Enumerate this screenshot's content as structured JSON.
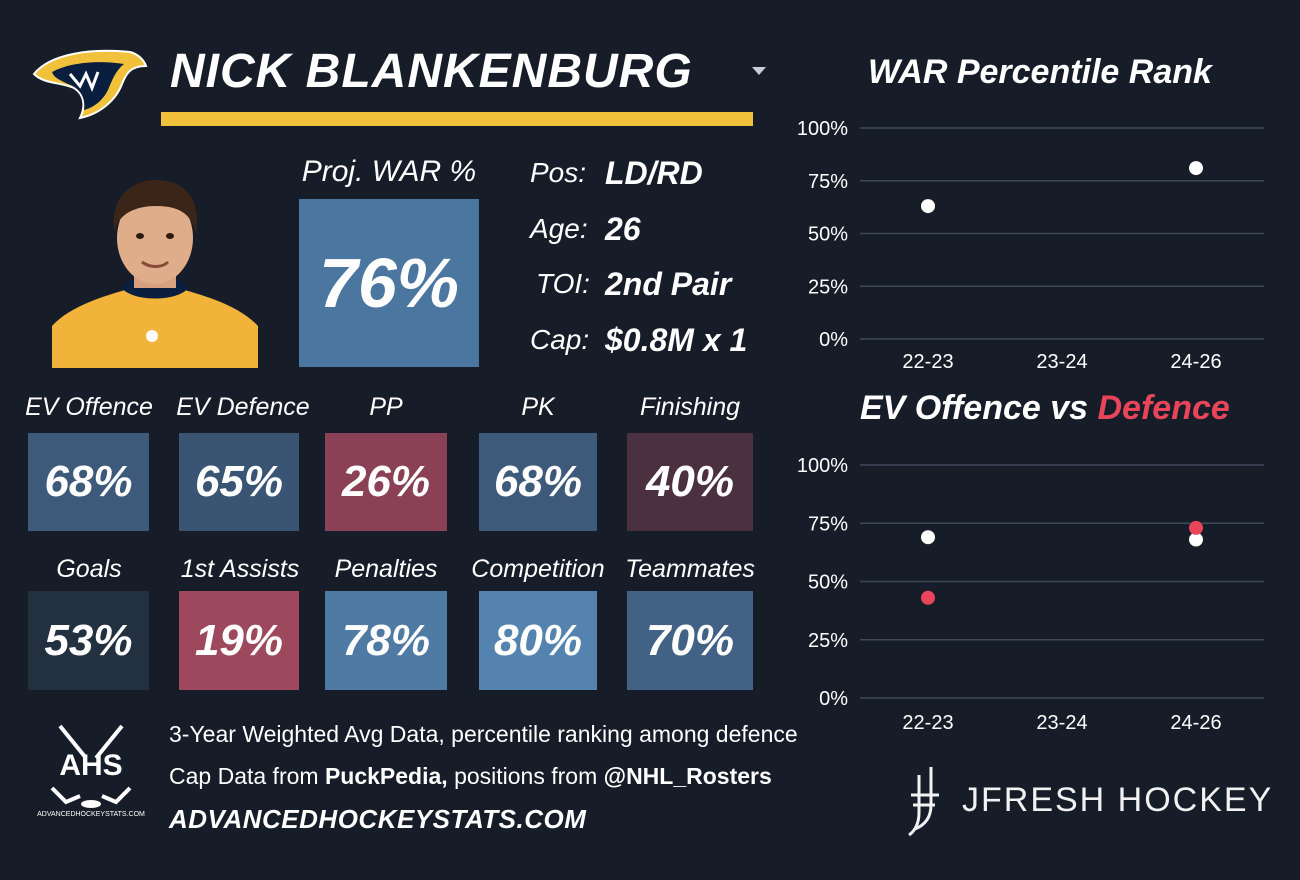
{
  "player": {
    "name": "NICK BLANKENBURG",
    "team_logo_icon": "nashville-predators-logo-icon",
    "headshot_icon": "player-headshot-icon"
  },
  "proj_war": {
    "label": "Proj. WAR %",
    "value": "76%"
  },
  "bio": [
    {
      "label": "Pos:",
      "value": "LD/RD"
    },
    {
      "label": "Age:",
      "value": "26"
    },
    {
      "label": "TOI:",
      "value": "2nd Pair"
    },
    {
      "label": "Cap:",
      "value": "$0.8M x 1"
    }
  ],
  "stats_row1": [
    {
      "label": "EV Offence",
      "value": "68%",
      "color": "#3e5a7a"
    },
    {
      "label": "EV Defence",
      "value": "65%",
      "color": "#3a5573"
    },
    {
      "label": "PP",
      "value": "26%",
      "color": "#8a4155"
    },
    {
      "label": "PK",
      "value": "68%",
      "color": "#3e5a7a"
    },
    {
      "label": "Finishing",
      "value": "40%",
      "color": "#4b3040"
    }
  ],
  "stats_row2": [
    {
      "label": "Goals",
      "value": "53%",
      "color": "#22303f"
    },
    {
      "label": "1st Assists",
      "value": "19%",
      "color": "#9e485e"
    },
    {
      "label": "Penalties",
      "value": "78%",
      "color": "#4f7aa3"
    },
    {
      "label": "Competition",
      "value": "80%",
      "color": "#5383ae"
    },
    {
      "label": "Teammates",
      "value": "70%",
      "color": "#426285"
    }
  ],
  "footer": {
    "line1": "3-Year Weighted Avg Data, percentile ranking among defence",
    "line2_prefix": "Cap Data from ",
    "line2_bold1": "PuckPedia,",
    "line2_mid": " positions from ",
    "line2_bold2": "@NHL_Rosters",
    "url": "ADVANCEDHOCKEYSTATS.COM",
    "ahs_logo_text": "AHS",
    "ahs_logo_subtext": "ADVANCEDHOCKEYSTATS.COM",
    "brand": "JFRESH HOCKEY"
  },
  "colors": {
    "background": "#161c28",
    "accent": "#f2c13c",
    "defence": "#e8455a",
    "offence": "#ffffff",
    "proj_war_box": "#4a76a0"
  },
  "chart_data": [
    {
      "type": "scatter",
      "title": "WAR Percentile Rank",
      "categories": [
        "22-23",
        "23-24",
        "24-26"
      ],
      "series": [
        {
          "values": [
            63,
            null,
            81
          ],
          "color": "#ffffff"
        }
      ],
      "ylim": [
        0,
        100
      ],
      "yticks": [
        "0%",
        "25%",
        "50%",
        "75%",
        "100%"
      ],
      "grid": true
    },
    {
      "type": "scatter",
      "title_part1": "EV Offence vs ",
      "title_part2": "Defence",
      "categories": [
        "22-23",
        "23-24",
        "24-26"
      ],
      "series": [
        {
          "values": [
            69,
            null,
            68
          ],
          "color": "#ffffff"
        },
        {
          "values": [
            43,
            null,
            73
          ],
          "color": "#e8455a"
        }
      ],
      "ylim": [
        0,
        100
      ],
      "yticks": [
        "0%",
        "25%",
        "50%",
        "75%",
        "100%"
      ],
      "grid": true
    }
  ]
}
